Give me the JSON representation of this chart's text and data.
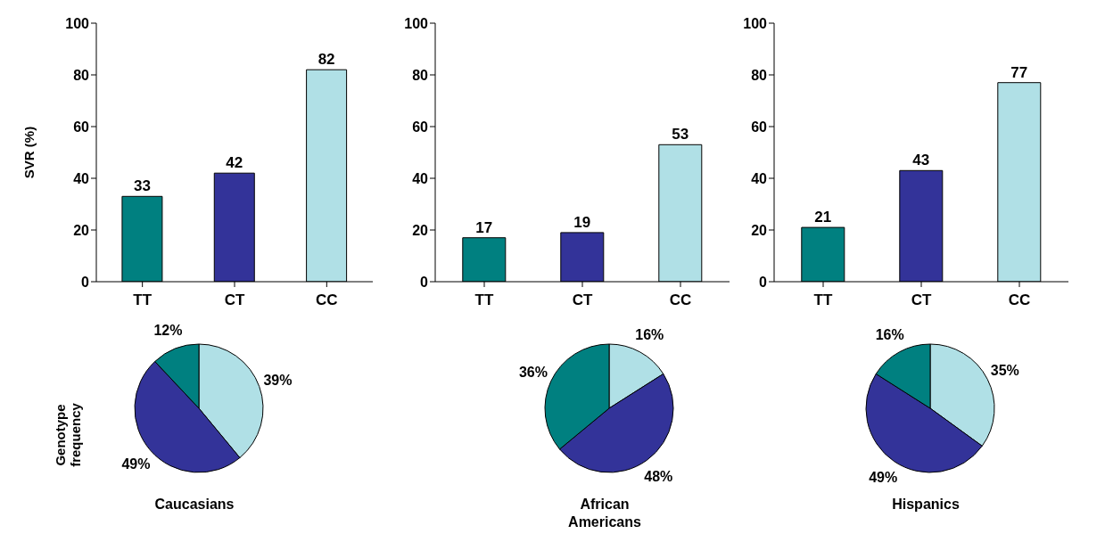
{
  "chart_data": [
    {
      "type": "bar",
      "ylabel": "SVR (%)",
      "categories": [
        "TT",
        "CT",
        "CC"
      ],
      "values": [
        33,
        42,
        82
      ],
      "colors": [
        "#008080",
        "#333399",
        "#b0e0e6"
      ],
      "ylim": [
        0,
        100
      ],
      "yticks": [
        0,
        20,
        40,
        60,
        80,
        100
      ],
      "data_labels": true
    },
    {
      "type": "bar",
      "categories": [
        "TT",
        "CT",
        "CC"
      ],
      "values": [
        17,
        19,
        53
      ],
      "colors": [
        "#008080",
        "#333399",
        "#b0e0e6"
      ],
      "ylim": [
        0,
        100
      ],
      "yticks": [
        0,
        20,
        40,
        60,
        80,
        100
      ],
      "data_labels": true
    },
    {
      "type": "bar",
      "categories": [
        "TT",
        "CT",
        "CC"
      ],
      "values": [
        21,
        43,
        77
      ],
      "colors": [
        "#008080",
        "#333399",
        "#b0e0e6"
      ],
      "ylim": [
        0,
        100
      ],
      "yticks": [
        0,
        20,
        40,
        60,
        80,
        100
      ],
      "data_labels": true
    },
    {
      "type": "pie",
      "title": "Caucasians",
      "ylabel": "Genotype frequency",
      "categories": [
        null,
        null,
        null
      ],
      "values": [
        39,
        49,
        12
      ],
      "value_labels": [
        "39%",
        "49%",
        "12%"
      ],
      "colors": [
        "#b0e0e6",
        "#333399",
        "#008080"
      ]
    },
    {
      "type": "pie",
      "title": "African Americans",
      "categories": [
        null,
        null,
        null
      ],
      "values": [
        16,
        48,
        36
      ],
      "value_labels": [
        "16%",
        "48%",
        "36%"
      ],
      "colors": [
        "#b0e0e6",
        "#333399",
        "#008080"
      ]
    },
    {
      "type": "pie",
      "title": "Hispanics",
      "categories": [
        null,
        null,
        null
      ],
      "values": [
        35,
        49,
        16
      ],
      "value_labels": [
        "35%",
        "49%",
        "16%"
      ],
      "colors": [
        "#b0e0e6",
        "#333399",
        "#008080"
      ]
    }
  ]
}
